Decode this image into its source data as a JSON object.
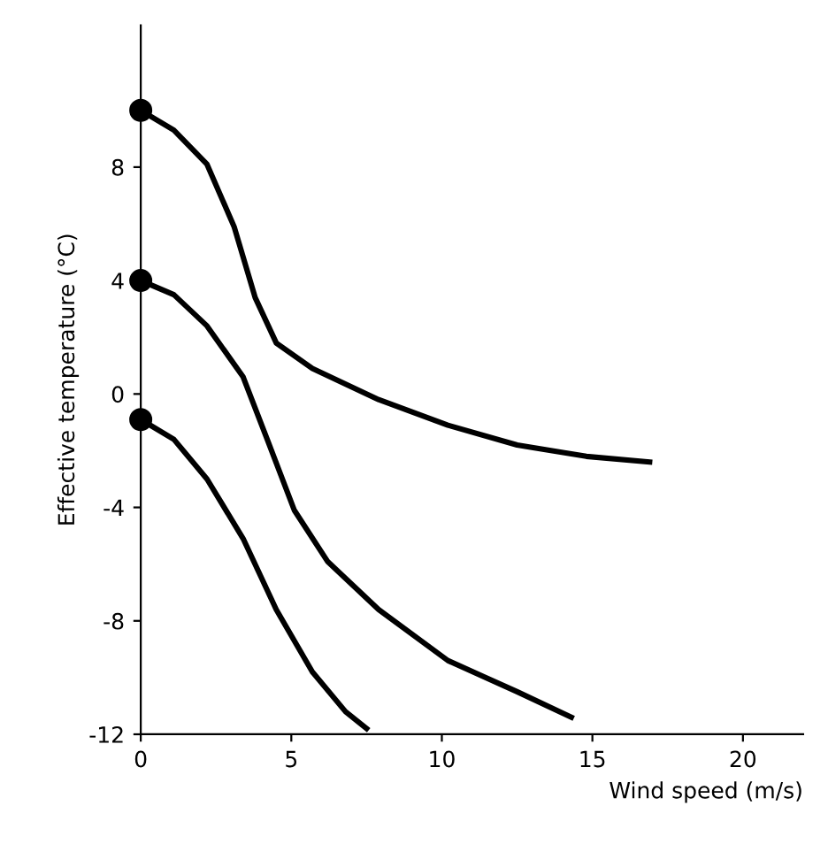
{
  "chart_data": {
    "type": "line",
    "xlabel": "Wind speed (m/s)",
    "ylabel": "Effective temperature (°C)",
    "xlim": [
      0,
      22
    ],
    "ylim": [
      -12,
      13
    ],
    "xticks": [
      0,
      5,
      10,
      15,
      20
    ],
    "yticks": [
      {
        "value": -12,
        "label": "-12"
      },
      {
        "value": -8,
        "label": "-8"
      },
      {
        "value": -4,
        "label": "-4"
      },
      0,
      4,
      8
    ],
    "grid": false,
    "legend": false,
    "series": [
      {
        "color": "#000000",
        "x": [
          0,
          1.1,
          2.2,
          3.1,
          3.8,
          4.5,
          5.7,
          7.9,
          10.2,
          12.5,
          14.8,
          16.9
        ],
        "values": [
          10,
          9.3,
          8.1,
          5.9,
          3.4,
          1.8,
          0.9,
          -0.2,
          -1.1,
          -1.8,
          -2.2,
          -2.4
        ]
      },
      {
        "color": "#000000",
        "x": [
          0,
          1.1,
          2.2,
          3.4,
          4.2,
          5.1,
          6.2,
          7.9,
          10.2,
          12.5,
          14.3
        ],
        "values": [
          4,
          3.5,
          2.4,
          0.6,
          -1.6,
          -4.1,
          -5.9,
          -7.6,
          -9.4,
          -10.5,
          -11.4
        ]
      },
      {
        "color": "#000000",
        "x": [
          0,
          1.1,
          2.2,
          3.4,
          4.5,
          5.7,
          6.8,
          7.5
        ],
        "values": [
          -0.9,
          -1.6,
          -3,
          -5.1,
          -7.6,
          -9.8,
          -11.2,
          -11.8
        ]
      },
      {
        "type": "scatter",
        "marker": "circle",
        "color": "#000000",
        "x": [
          0,
          0,
          0
        ],
        "values": [
          10,
          4,
          -0.9
        ]
      }
    ]
  }
}
